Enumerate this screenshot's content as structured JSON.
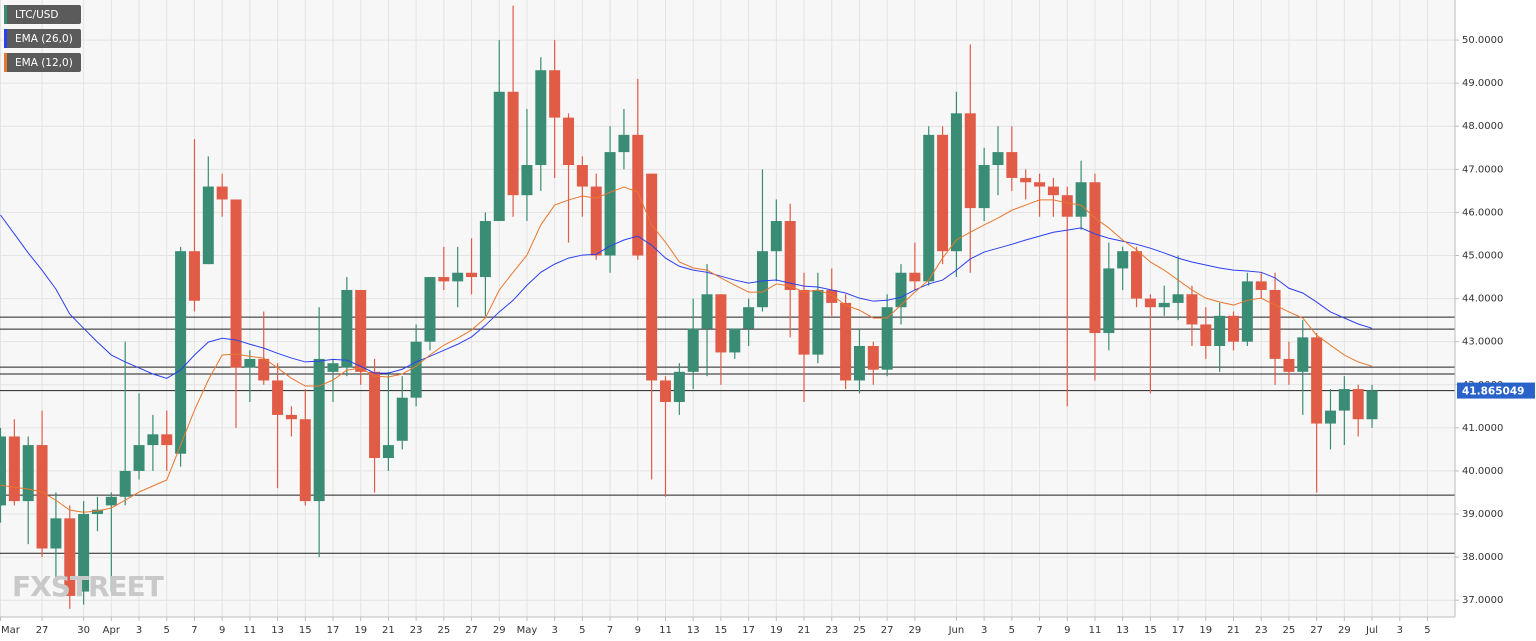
{
  "chart_data": {
    "type": "candlestick",
    "categories": [
      "Mar",
      null,
      null,
      "27",
      null,
      null,
      "30",
      null,
      "Apr",
      null,
      "3",
      null,
      "5",
      null,
      "7",
      null,
      "9",
      null,
      "11",
      null,
      "13",
      null,
      "15",
      null,
      "17",
      null,
      "19",
      null,
      "21",
      null,
      "23",
      null,
      "25",
      null,
      "27",
      null,
      "29",
      null,
      "May",
      null,
      "3",
      null,
      "5",
      null,
      "7",
      null,
      "9",
      null,
      "11",
      null,
      "13",
      null,
      "15",
      null,
      "17",
      null,
      "19",
      null,
      "21",
      null,
      "23",
      null,
      "25",
      null,
      "27",
      null,
      "29",
      null,
      null,
      "Jun",
      null,
      "3",
      null,
      "5",
      null,
      "7",
      null,
      "9",
      null,
      "11",
      null,
      "13",
      null,
      "15",
      null,
      "17",
      null,
      "19",
      null,
      "21",
      null,
      "23",
      null,
      "25",
      null,
      "27",
      null,
      "29",
      null,
      "Jul",
      null,
      "3",
      null,
      "5"
    ],
    "series": [
      {
        "name": "LTC/USD",
        "type": "candlestick",
        "up_color": "#3a8c74",
        "down_color": "#e05c47",
        "open": [
          39.2,
          40.8,
          39.3,
          40.6,
          38.2,
          38.9,
          37.2,
          39.0,
          39.2,
          39.4,
          40.0,
          40.6,
          40.85,
          40.4,
          45.1,
          44.8,
          46.6,
          46.3,
          42.4,
          42.6,
          42.1,
          41.3,
          41.2,
          39.3,
          42.3,
          42.4,
          44.2,
          42.3,
          40.3,
          40.7,
          41.7,
          43.0,
          44.5,
          44.4,
          44.6,
          44.5,
          45.8,
          48.8,
          46.4,
          47.1,
          49.3,
          48.2,
          47.1,
          46.6,
          45.0,
          47.4,
          47.8,
          46.9,
          42.1,
          41.6,
          42.3,
          43.3,
          44.1,
          42.75,
          43.3,
          43.8,
          45.1,
          45.8,
          44.2,
          42.7,
          44.2,
          43.9,
          42.1,
          42.9,
          42.35,
          43.8,
          44.6,
          44.4,
          47.8,
          45.1,
          48.3,
          46.1,
          47.1,
          47.4,
          46.8,
          46.7,
          46.6,
          46.4,
          45.9,
          46.7,
          43.2,
          44.7,
          45.1,
          44.0,
          43.8,
          43.9,
          44.1,
          43.4,
          42.9,
          43.6,
          43.0,
          44.4,
          44.2,
          42.6,
          42.3,
          43.1,
          41.1,
          41.4,
          41.9,
          41.2,
          null,
          null,
          null,
          null
        ],
        "high": [
          41.0,
          41.2,
          40.8,
          41.4,
          39.5,
          39.2,
          39.3,
          39.4,
          39.5,
          43.0,
          41.8,
          41.3,
          41.4,
          45.2,
          47.7,
          47.3,
          46.9,
          46.3,
          42.8,
          43.7,
          42.5,
          41.5,
          41.9,
          43.8,
          42.6,
          44.5,
          44.2,
          42.6,
          42.3,
          42.2,
          43.4,
          44.5,
          45.2,
          45.2,
          45.4,
          46.0,
          50.0,
          50.8,
          48.4,
          49.6,
          50.0,
          48.3,
          47.3,
          46.9,
          48.0,
          48.4,
          49.1,
          46.9,
          42.2,
          42.5,
          44.0,
          44.8,
          44.1,
          43.3,
          44.0,
          47.0,
          46.3,
          46.2,
          44.6,
          44.6,
          44.7,
          44.1,
          43.3,
          43.0,
          44.1,
          44.8,
          45.3,
          48.0,
          48.0,
          48.8,
          49.9,
          47.5,
          48.0,
          48.0,
          47.0,
          46.9,
          46.8,
          46.6,
          47.2,
          46.9,
          45.3,
          45.2,
          45.2,
          44.1,
          44.3,
          45.0,
          44.3,
          43.8,
          43.9,
          43.7,
          44.6,
          44.6,
          44.6,
          43.0,
          43.5,
          43.2,
          41.9,
          42.2,
          42.0,
          42.0,
          null,
          null,
          null,
          null
        ],
        "low": [
          38.8,
          39.2,
          38.3,
          38.0,
          37.5,
          36.8,
          36.9,
          38.6,
          37.2,
          39.2,
          39.8,
          40.0,
          40.0,
          40.1,
          43.7,
          44.8,
          45.9,
          41.0,
          41.6,
          42.0,
          39.6,
          40.8,
          39.2,
          38.0,
          41.6,
          42.2,
          42.0,
          39.5,
          40.0,
          40.5,
          41.5,
          42.8,
          44.2,
          43.8,
          44.1,
          43.6,
          45.8,
          45.9,
          45.8,
          46.5,
          46.8,
          45.3,
          45.9,
          44.9,
          44.6,
          47.0,
          44.9,
          39.8,
          39.4,
          41.3,
          41.9,
          42.2,
          42.0,
          42.6,
          42.9,
          43.7,
          44.4,
          43.1,
          41.6,
          42.5,
          43.6,
          41.9,
          41.8,
          42.0,
          42.2,
          43.4,
          44.2,
          44.3,
          44.8,
          44.5,
          44.6,
          45.8,
          46.4,
          46.5,
          46.3,
          45.9,
          45.9,
          41.5,
          45.6,
          42.1,
          42.8,
          44.2,
          43.8,
          41.8,
          43.6,
          43.5,
          42.9,
          42.6,
          42.3,
          42.8,
          42.9,
          44.0,
          42.0,
          42.0,
          41.3,
          39.5,
          40.5,
          40.6,
          40.8,
          41.0,
          null,
          null,
          null,
          null
        ],
        "close": [
          40.8,
          39.3,
          40.6,
          38.2,
          38.9,
          37.1,
          39.0,
          39.1,
          39.4,
          40.0,
          40.6,
          40.85,
          40.6,
          45.1,
          43.95,
          46.6,
          46.3,
          42.4,
          42.6,
          42.1,
          41.3,
          41.2,
          39.3,
          42.6,
          42.5,
          44.2,
          42.3,
          40.3,
          40.6,
          41.7,
          43.0,
          44.5,
          44.4,
          44.6,
          44.5,
          45.8,
          48.8,
          46.4,
          47.1,
          49.3,
          48.2,
          47.1,
          46.6,
          45.0,
          47.4,
          47.8,
          45.0,
          42.1,
          41.6,
          42.3,
          43.3,
          44.1,
          42.75,
          43.3,
          43.8,
          45.1,
          45.8,
          44.2,
          42.7,
          44.2,
          43.9,
          42.1,
          42.9,
          42.35,
          43.8,
          44.6,
          44.4,
          47.8,
          45.1,
          48.3,
          46.1,
          47.1,
          47.4,
          46.8,
          46.7,
          46.6,
          46.4,
          45.9,
          46.7,
          43.2,
          44.7,
          45.1,
          44.0,
          43.8,
          43.9,
          44.1,
          43.4,
          42.9,
          43.6,
          43.0,
          44.4,
          44.2,
          42.6,
          42.3,
          43.1,
          41.1,
          41.4,
          41.9,
          41.2,
          41.865,
          null,
          null,
          null,
          null
        ]
      },
      {
        "name": "EMA (26,0)",
        "type": "line",
        "color": "#2b3ff0",
        "values": [
          45.94,
          45.5,
          45.06,
          44.66,
          44.22,
          43.64,
          43.31,
          42.99,
          42.69,
          42.53,
          42.39,
          42.25,
          42.15,
          42.34,
          42.69,
          42.99,
          43.08,
          43.04,
          42.94,
          42.85,
          42.73,
          42.62,
          42.53,
          42.55,
          42.59,
          42.57,
          42.43,
          42.27,
          42.27,
          42.36,
          42.53,
          42.66,
          42.8,
          42.94,
          43.11,
          43.38,
          43.69,
          43.96,
          44.31,
          44.61,
          44.8,
          44.94,
          45.01,
          45.03,
          45.22,
          45.36,
          45.45,
          45.24,
          44.94,
          44.75,
          44.66,
          44.61,
          44.52,
          44.43,
          44.36,
          44.41,
          44.43,
          44.36,
          44.29,
          44.27,
          44.2,
          44.13,
          44.01,
          43.94,
          43.96,
          44.03,
          44.2,
          44.34,
          44.43,
          44.66,
          44.92,
          45.08,
          45.17,
          45.26,
          45.36,
          45.45,
          45.54,
          45.59,
          45.64,
          45.5,
          45.4,
          45.33,
          45.26,
          45.17,
          45.06,
          44.94,
          44.85,
          44.78,
          44.71,
          44.66,
          44.64,
          44.61,
          44.48,
          44.24,
          44.13,
          43.92,
          43.69,
          43.55,
          43.41,
          43.31,
          null,
          null,
          null,
          null
        ]
      },
      {
        "name": "EMA (12,0)",
        "type": "line",
        "color": "#e8772e",
        "values": [
          39.67,
          39.62,
          39.58,
          39.51,
          39.32,
          39.09,
          39.04,
          39.07,
          39.14,
          39.32,
          39.51,
          39.65,
          39.79,
          40.6,
          41.41,
          42.11,
          42.69,
          42.71,
          42.66,
          42.62,
          42.39,
          42.15,
          41.97,
          41.97,
          42.11,
          42.34,
          42.39,
          42.2,
          42.18,
          42.25,
          42.43,
          42.69,
          42.92,
          43.08,
          43.27,
          43.55,
          44.2,
          44.61,
          45.01,
          45.71,
          46.17,
          46.29,
          46.38,
          46.33,
          46.47,
          46.59,
          46.47,
          45.71,
          45.31,
          44.85,
          44.71,
          44.66,
          44.48,
          44.31,
          44.15,
          44.15,
          44.34,
          44.29,
          44.15,
          44.2,
          44.08,
          43.85,
          43.73,
          43.55,
          43.55,
          43.85,
          44.15,
          44.43,
          44.94,
          45.36,
          45.54,
          45.71,
          45.87,
          46.05,
          46.17,
          46.29,
          46.29,
          46.22,
          46.17,
          45.87,
          45.64,
          45.36,
          45.13,
          44.85,
          44.66,
          44.43,
          44.2,
          44.01,
          43.92,
          43.85,
          43.96,
          44.01,
          43.85,
          43.69,
          43.55,
          43.15,
          42.92,
          42.69,
          42.53,
          42.43,
          null,
          null,
          null,
          null
        ]
      }
    ],
    "ylim": [
      36.61,
      50.93
    ],
    "yticks": [
      {
        "value": 37,
        "label": "37.0000"
      },
      {
        "value": 38,
        "label": "38.0000"
      },
      {
        "value": 39,
        "label": "39.0000"
      },
      {
        "value": 40,
        "label": "40.0000"
      },
      {
        "value": 41,
        "label": "41.0000"
      },
      {
        "value": 42,
        "label": "42.0000"
      },
      {
        "value": 43,
        "label": "43.0000"
      },
      {
        "value": 44,
        "label": "44.0000"
      },
      {
        "value": 45,
        "label": "45.0000"
      },
      {
        "value": 46,
        "label": "46.0000"
      },
      {
        "value": 47,
        "label": "47.0000"
      },
      {
        "value": 48,
        "label": "48.0000"
      },
      {
        "value": 49,
        "label": "49.0000"
      },
      {
        "value": 50,
        "label": "50.0000"
      }
    ],
    "hlines": [
      43.57,
      43.29,
      42.41,
      42.25,
      39.44,
      38.09
    ],
    "last_price": 41.865049,
    "last_price_color": "#2962c9",
    "grid": true,
    "legend": "upper left",
    "watermark": "FXSTREET"
  }
}
